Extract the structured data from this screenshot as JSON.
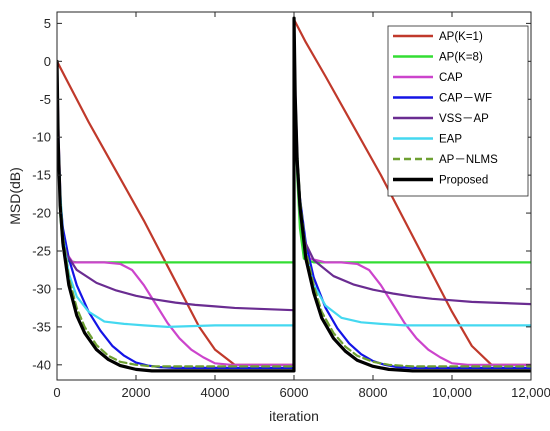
{
  "chart_data": {
    "type": "line",
    "title": "",
    "xlabel": "iteration",
    "ylabel": "MSD(dB)",
    "xlim": [
      0,
      12000
    ],
    "ylim": [
      -42,
      6.5
    ],
    "xticks": [
      0,
      2000,
      4000,
      6000,
      8000,
      10000,
      12000
    ],
    "xtick_labels": [
      "0",
      "2000",
      "4000",
      "6000",
      "8000",
      "10,000",
      "12,000"
    ],
    "yticks": [
      5,
      0,
      -5,
      -10,
      -15,
      -20,
      -25,
      -30,
      -35,
      -40
    ],
    "ytick_labels": [
      "5",
      "0",
      "-5",
      "-10",
      "-15",
      "-20",
      "-25",
      "-30",
      "-35",
      "-40"
    ],
    "grid": false,
    "legend_position": "top-right",
    "series": [
      {
        "name": "AP(K=1)",
        "color": "#c0392b",
        "style": "solid",
        "x": [
          0,
          300,
          800,
          1500,
          2200,
          2800,
          3200,
          3600,
          4000,
          4500,
          5000,
          5500,
          5999,
          6001,
          6300,
          6800,
          7500,
          8200,
          8800,
          9200,
          9600,
          10000,
          10500,
          11000,
          11500,
          12000
        ],
        "y": [
          0,
          -3,
          -8,
          -14.5,
          -21,
          -27,
          -31,
          -35,
          -38,
          -40,
          -40,
          -40,
          -40,
          5.5,
          2.5,
          -2,
          -8.5,
          -15,
          -21,
          -25,
          -29,
          -33,
          -37.5,
          -40,
          -40,
          -40
        ]
      },
      {
        "name": "AP(K=8)",
        "color": "#33dd33",
        "style": "solid",
        "x": [
          0,
          30,
          80,
          150,
          250,
          500,
          1000,
          2000,
          3000,
          4000,
          5000,
          5999,
          6001,
          6030,
          6080,
          6150,
          6250,
          6500,
          7000,
          8000,
          9000,
          10000,
          11000,
          12000
        ],
        "y": [
          0,
          -10,
          -20,
          -24.5,
          -26.3,
          -26.5,
          -26.5,
          -26.5,
          -26.5,
          -26.5,
          -26.5,
          -26.5,
          5.5,
          -5,
          -15,
          -22,
          -26,
          -26.5,
          -26.5,
          -26.5,
          -26.5,
          -26.5,
          -26.5,
          -26.5
        ]
      },
      {
        "name": "CAP",
        "color": "#cc44cc",
        "style": "solid",
        "x": [
          0,
          40,
          100,
          200,
          400,
          800,
          1200,
          1600,
          1900,
          2200,
          2500,
          2800,
          3100,
          3400,
          3700,
          4000,
          4400,
          5000,
          5999,
          6001,
          6040,
          6100,
          6200,
          6400,
          6800,
          7200,
          7600,
          7900,
          8200,
          8500,
          8800,
          9100,
          9400,
          9700,
          10000,
          10400,
          11000,
          12000
        ],
        "y": [
          0,
          -10,
          -20,
          -25,
          -26.5,
          -26.5,
          -26.5,
          -26.7,
          -27.5,
          -29.5,
          -32,
          -34.5,
          -36.5,
          -38,
          -39,
          -39.8,
          -40,
          -40,
          -40,
          5.5,
          -5,
          -15,
          -22,
          -26,
          -26.5,
          -26.5,
          -26.7,
          -27.5,
          -29.5,
          -32,
          -34.5,
          -36.5,
          -38,
          -39,
          -39.8,
          -40,
          -40,
          -40
        ]
      },
      {
        "name": "CAP－WF",
        "color": "#1414e6",
        "style": "solid",
        "x": [
          0,
          30,
          80,
          150,
          300,
          500,
          800,
          1100,
          1400,
          1700,
          2000,
          2300,
          2600,
          3000,
          4000,
          5000,
          5999,
          6001,
          6030,
          6080,
          6150,
          6300,
          6500,
          6800,
          7100,
          7400,
          7700,
          8000,
          8300,
          8600,
          9000,
          10000,
          11000,
          12000
        ],
        "y": [
          0,
          -10,
          -18,
          -22,
          -26,
          -29.5,
          -33,
          -35.5,
          -37.5,
          -38.8,
          -39.7,
          -40.1,
          -40.3,
          -40.4,
          -40.4,
          -40.4,
          -40.4,
          5.5,
          -5,
          -13,
          -18,
          -24,
          -28.5,
          -32.5,
          -35.2,
          -37.2,
          -38.6,
          -39.5,
          -40,
          -40.3,
          -40.4,
          -40.4,
          -40.4,
          -40.4
        ]
      },
      {
        "name": "VSS－AP",
        "color": "#6a2c91",
        "style": "solid",
        "x": [
          0,
          30,
          80,
          150,
          250,
          500,
          1000,
          1500,
          2000,
          2500,
          3000,
          3500,
          4000,
          4500,
          5000,
          5500,
          5999,
          6001,
          6030,
          6080,
          6150,
          6250,
          6500,
          7000,
          7500,
          8000,
          8500,
          9000,
          9500,
          10000,
          10500,
          11000,
          11500,
          12000
        ],
        "y": [
          0,
          -10,
          -19,
          -23.5,
          -25.5,
          -27.5,
          -29.2,
          -30.2,
          -30.9,
          -31.4,
          -31.8,
          -32.1,
          -32.3,
          -32.5,
          -32.6,
          -32.7,
          -32.8,
          5.5,
          -5,
          -14,
          -20,
          -23.5,
          -26.2,
          -28.3,
          -29.4,
          -30.1,
          -30.6,
          -31,
          -31.3,
          -31.5,
          -31.7,
          -31.8,
          -31.9,
          -32
        ]
      },
      {
        "name": "EAP",
        "color": "#44d8f0",
        "style": "solid",
        "x": [
          0,
          30,
          80,
          150,
          300,
          500,
          800,
          1200,
          1700,
          2200,
          2800,
          3400,
          4000,
          4500,
          5000,
          5500,
          5999,
          6001,
          6030,
          6080,
          6150,
          6300,
          6500,
          6800,
          7200,
          7700,
          8200,
          8800,
          9400,
          10000,
          10500,
          11000,
          11500,
          12000
        ],
        "y": [
          0,
          -9,
          -17,
          -23,
          -28,
          -31,
          -33,
          -34.3,
          -34.6,
          -34.8,
          -35,
          -34.9,
          -34.8,
          -34.8,
          -34.8,
          -34.8,
          -34.8,
          5.5,
          -4,
          -12,
          -19,
          -25.5,
          -29.5,
          -32.2,
          -33.8,
          -34.4,
          -34.6,
          -34.8,
          -34.8,
          -34.8,
          -34.8,
          -34.8,
          -34.8,
          -34.8
        ]
      },
      {
        "name": "AP－NLMS",
        "color": "#6ea032",
        "style": "dashed",
        "x": [
          0,
          30,
          80,
          150,
          300,
          500,
          700,
          1000,
          1300,
          1600,
          2000,
          2400,
          3000,
          4000,
          5000,
          5999,
          6001,
          6030,
          6080,
          6150,
          6300,
          6500,
          6700,
          7000,
          7300,
          7600,
          8000,
          8400,
          9000,
          10000,
          11000,
          12000
        ],
        "y": [
          0,
          -10,
          -18,
          -23,
          -28.5,
          -32.5,
          -35,
          -37.4,
          -38.8,
          -39.6,
          -40,
          -40.2,
          -40.2,
          -40.2,
          -40.2,
          -40.2,
          5.5,
          -4,
          -12,
          -18,
          -25,
          -29.5,
          -33,
          -35.8,
          -37.6,
          -38.8,
          -39.6,
          -40,
          -40.2,
          -40.2,
          -40.2,
          -40.2
        ]
      },
      {
        "name": "Proposed",
        "color": "#000000",
        "style": "solid",
        "x": [
          0,
          30,
          80,
          150,
          300,
          500,
          700,
          1000,
          1300,
          1600,
          2000,
          2400,
          3000,
          4000,
          5000,
          5999,
          6001,
          6030,
          6080,
          6150,
          6300,
          6500,
          6700,
          7000,
          7300,
          7600,
          8000,
          8400,
          9000,
          10000,
          11000,
          12000
        ],
        "y": [
          0,
          -10.5,
          -19,
          -24,
          -29.5,
          -33.5,
          -35.8,
          -38,
          -39.3,
          -40.1,
          -40.6,
          -40.8,
          -40.8,
          -40.8,
          -40.8,
          -40.8,
          5.7,
          -4.5,
          -13,
          -19,
          -26,
          -30.5,
          -33.8,
          -36.5,
          -38.2,
          -39.4,
          -40.2,
          -40.6,
          -40.8,
          -40.8,
          -40.8,
          -40.8
        ]
      }
    ]
  }
}
